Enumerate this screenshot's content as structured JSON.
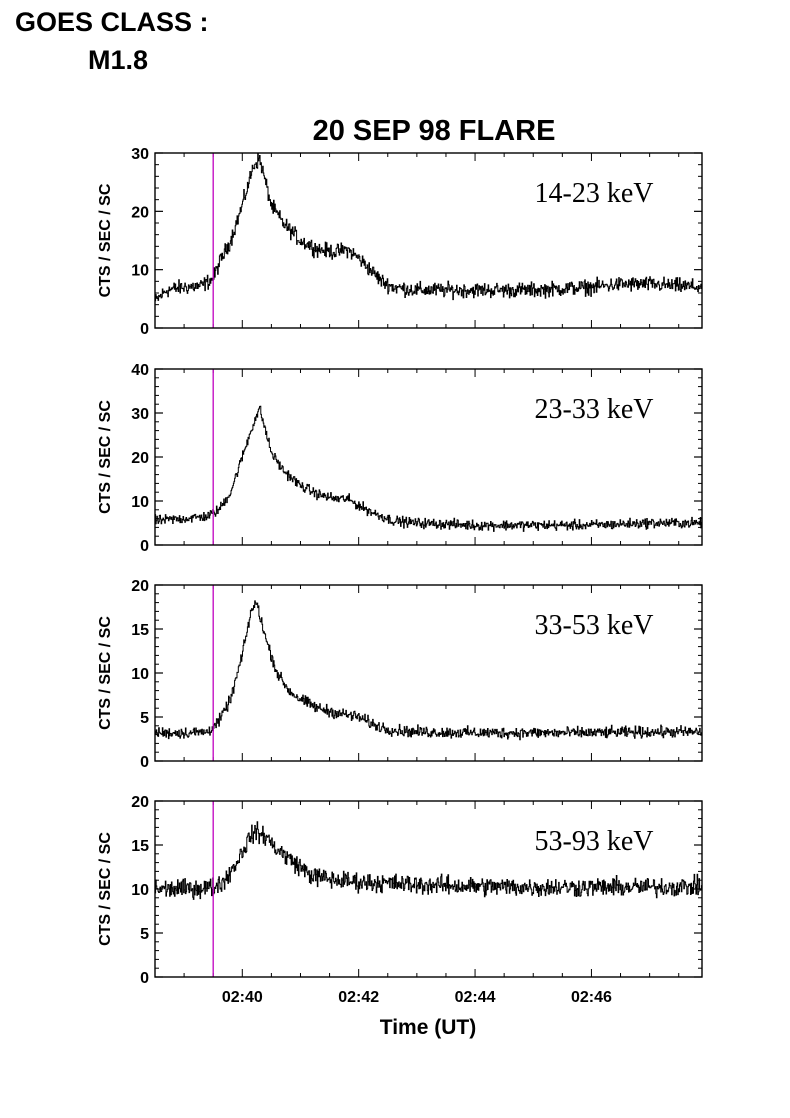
{
  "header": {
    "goes_line1": "GOES CLASS :",
    "goes_line2": "M1.8"
  },
  "chart_data": {
    "type": "line",
    "title": "20 SEP 98 FLARE",
    "xlabel": "Time (UT)",
    "ylabel": "CTS / SEC / SC",
    "x_unit": "minutes after 02:00 UT",
    "xlim": [
      38.5,
      47.9
    ],
    "x_ticks": [
      {
        "value": 40,
        "label": "02:40"
      },
      {
        "value": 42,
        "label": "02:42"
      },
      {
        "value": 44,
        "label": "02:44"
      },
      {
        "value": 46,
        "label": "02:46"
      }
    ],
    "x_minor_step": 0.5,
    "vertical_marker": {
      "x": 39.5,
      "color": "#c000c0"
    },
    "series_color": "#000000",
    "panels": [
      {
        "name": "14-23 keV",
        "ylim": [
          0,
          30
        ],
        "yticks": [
          0,
          10,
          20,
          30
        ],
        "points": [
          [
            38.5,
            4.5
          ],
          [
            38.7,
            6.5
          ],
          [
            39.0,
            7.0
          ],
          [
            39.3,
            7.2
          ],
          [
            39.5,
            8.5
          ],
          [
            39.6,
            11
          ],
          [
            39.8,
            15
          ],
          [
            40.0,
            21
          ],
          [
            40.2,
            28
          ],
          [
            40.3,
            29
          ],
          [
            40.4,
            25
          ],
          [
            40.5,
            21
          ],
          [
            40.7,
            18
          ],
          [
            41.0,
            15
          ],
          [
            41.3,
            13.5
          ],
          [
            41.6,
            13
          ],
          [
            41.8,
            13.5
          ],
          [
            42.0,
            12
          ],
          [
            42.2,
            10
          ],
          [
            42.4,
            8
          ],
          [
            42.6,
            7
          ],
          [
            43.0,
            6.5
          ],
          [
            44.0,
            6.5
          ],
          [
            45.0,
            6.5
          ],
          [
            46.0,
            7.0
          ],
          [
            46.5,
            7.5
          ],
          [
            47.0,
            7.5
          ],
          [
            47.9,
            7.0
          ]
        ],
        "noise": 0.9
      },
      {
        "name": "23-33 keV",
        "ylim": [
          0,
          40
        ],
        "yticks": [
          0,
          10,
          20,
          30,
          40
        ],
        "points": [
          [
            38.5,
            5.5
          ],
          [
            39.0,
            6.0
          ],
          [
            39.4,
            6.5
          ],
          [
            39.6,
            8
          ],
          [
            39.8,
            12
          ],
          [
            40.0,
            20
          ],
          [
            40.2,
            28
          ],
          [
            40.3,
            31
          ],
          [
            40.4,
            26
          ],
          [
            40.5,
            21
          ],
          [
            40.7,
            17
          ],
          [
            41.0,
            13.5
          ],
          [
            41.3,
            11.5
          ],
          [
            41.6,
            10.5
          ],
          [
            41.8,
            10.5
          ],
          [
            42.0,
            9
          ],
          [
            42.3,
            7
          ],
          [
            42.6,
            5.5
          ],
          [
            43.0,
            5
          ],
          [
            44.0,
            4.5
          ],
          [
            45.0,
            4.5
          ],
          [
            46.0,
            4.5
          ],
          [
            47.0,
            5
          ],
          [
            47.9,
            5
          ]
        ],
        "noise": 0.8
      },
      {
        "name": "33-53 keV",
        "ylim": [
          0,
          20
        ],
        "yticks": [
          0,
          5,
          10,
          15,
          20
        ],
        "points": [
          [
            38.5,
            3.2
          ],
          [
            39.0,
            3.2
          ],
          [
            39.4,
            3.3
          ],
          [
            39.6,
            4.5
          ],
          [
            39.8,
            7
          ],
          [
            40.0,
            12
          ],
          [
            40.15,
            17
          ],
          [
            40.25,
            18
          ],
          [
            40.4,
            14
          ],
          [
            40.6,
            10
          ],
          [
            40.8,
            8
          ],
          [
            41.0,
            7
          ],
          [
            41.3,
            6
          ],
          [
            41.6,
            5.5
          ],
          [
            42.0,
            5
          ],
          [
            42.3,
            4
          ],
          [
            42.6,
            3.5
          ],
          [
            43.0,
            3.3
          ],
          [
            44.0,
            3.2
          ],
          [
            45.0,
            3.2
          ],
          [
            46.0,
            3.2
          ],
          [
            47.0,
            3.3
          ],
          [
            47.9,
            3.3
          ]
        ],
        "noise": 0.45
      },
      {
        "name": "53-93 keV",
        "ylim": [
          0,
          20
        ],
        "yticks": [
          0,
          5,
          10,
          15,
          20
        ],
        "points": [
          [
            38.5,
            10
          ],
          [
            39.0,
            10
          ],
          [
            39.5,
            10.2
          ],
          [
            39.7,
            11
          ],
          [
            39.9,
            13
          ],
          [
            40.1,
            15.5
          ],
          [
            40.2,
            16.5
          ],
          [
            40.4,
            16
          ],
          [
            40.6,
            14.5
          ],
          [
            40.9,
            13
          ],
          [
            41.2,
            11.5
          ],
          [
            41.6,
            11
          ],
          [
            42.0,
            10.8
          ],
          [
            43.0,
            10.5
          ],
          [
            44.0,
            10.3
          ],
          [
            45.0,
            10.2
          ],
          [
            46.0,
            10.2
          ],
          [
            47.0,
            10.2
          ],
          [
            47.9,
            10.3
          ]
        ],
        "noise": 0.75
      }
    ]
  }
}
